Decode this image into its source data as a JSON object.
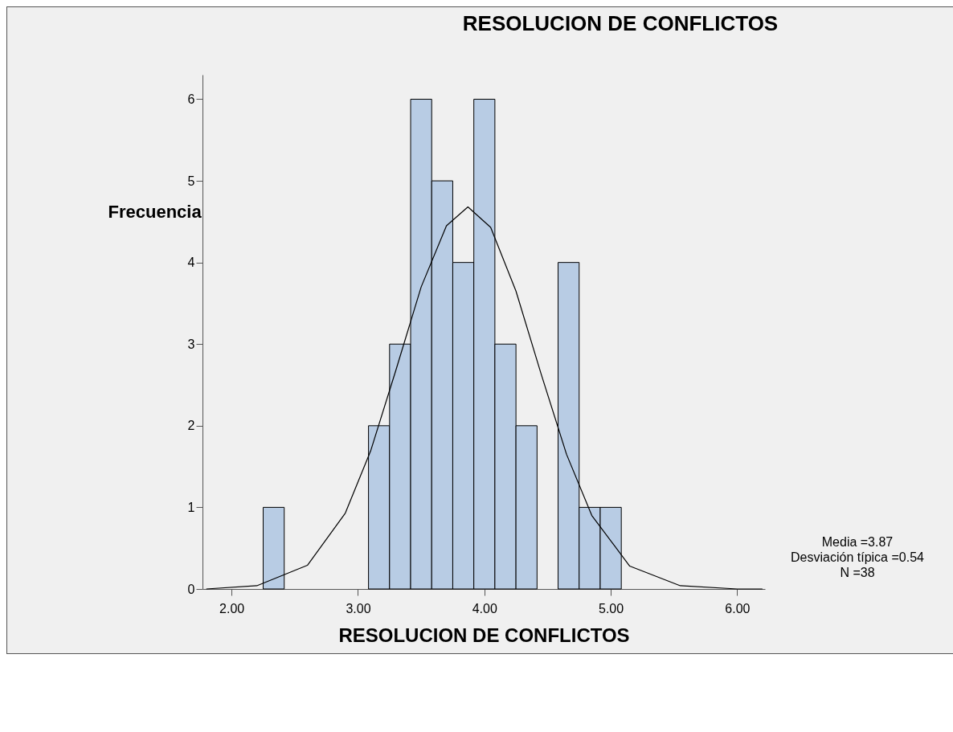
{
  "chart_data": {
    "type": "histogram",
    "title": "RESOLUCION DE CONFLICTOS",
    "xlabel": "RESOLUCION DE CONFLICTOS",
    "ylabel": "Frecuencia",
    "bins": [
      2.25,
      2.4167,
      2.5833,
      2.75,
      2.9167,
      3.0833,
      3.25,
      3.4167,
      3.5833,
      3.75,
      3.9167,
      4.0833,
      4.25,
      4.4167,
      4.5833,
      4.75,
      4.9167,
      5.0833
    ],
    "values": [
      1,
      0,
      0,
      0,
      0,
      2,
      3,
      6,
      5,
      4,
      6,
      3,
      2,
      0,
      4,
      1,
      1
    ],
    "color": "#b8cce4",
    "series": [
      {
        "type": "line",
        "color": "#000000",
        "x": [
          1.8,
          2.2,
          2.6,
          2.9,
          3.1,
          3.3,
          3.5,
          3.7,
          3.87,
          4.05,
          4.25,
          4.45,
          4.65,
          4.85,
          5.15,
          5.55,
          6.0,
          6.2
        ],
        "values": [
          0.0,
          0.04,
          0.29,
          0.93,
          1.69,
          2.68,
          3.7,
          4.45,
          4.68,
          4.43,
          3.65,
          2.63,
          1.65,
          0.9,
          0.28,
          0.04,
          0.0,
          0.0
        ]
      }
    ],
    "xlim": [
      1.77,
      6.22
    ],
    "xticks": [
      {
        "value": 2,
        "label": "2.00"
      },
      {
        "value": 3,
        "label": "3.00"
      },
      {
        "value": 4,
        "label": "4.00"
      },
      {
        "value": 5,
        "label": "5.00"
      },
      {
        "value": 6,
        "label": "6.00"
      }
    ],
    "ylim": [
      0,
      6.3
    ],
    "yticks": [
      0,
      1,
      2,
      3,
      4,
      5,
      6
    ],
    "grid": false,
    "annotations": [
      "Media =3.87",
      "Desviación típica =0.54",
      "N =38"
    ]
  }
}
